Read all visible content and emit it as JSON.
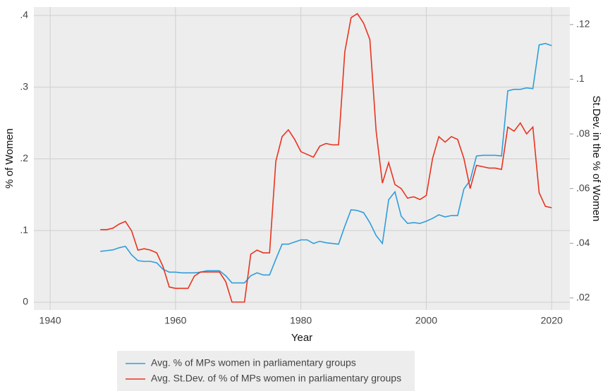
{
  "chart_data": {
    "type": "line",
    "x_label": "Year",
    "y_label": "% of Women",
    "y2_label": "St.Dev. in the % of Women",
    "x": [
      1948,
      1949,
      1950,
      1951,
      1952,
      1953,
      1954,
      1955,
      1956,
      1957,
      1958,
      1959,
      1960,
      1961,
      1962,
      1963,
      1964,
      1965,
      1966,
      1967,
      1968,
      1969,
      1970,
      1971,
      1972,
      1973,
      1974,
      1975,
      1976,
      1977,
      1978,
      1979,
      1980,
      1981,
      1982,
      1983,
      1984,
      1985,
      1986,
      1987,
      1988,
      1989,
      1990,
      1991,
      1992,
      1993,
      1994,
      1995,
      1996,
      1997,
      1998,
      1999,
      2000,
      2001,
      2002,
      2003,
      2004,
      2005,
      2006,
      2007,
      2008,
      2009,
      2010,
      2011,
      2012,
      2013,
      2014,
      2015,
      2016,
      2017,
      2018,
      2019,
      2020
    ],
    "series": [
      {
        "name": "Avg. % of MPs women in parliamentary groups",
        "color": "#2f9ddb",
        "axis": "y",
        "values": [
          0.071,
          0.072,
          0.073,
          0.076,
          0.078,
          0.066,
          0.058,
          0.057,
          0.057,
          0.055,
          0.046,
          0.042,
          0.042,
          0.041,
          0.041,
          0.041,
          0.042,
          0.044,
          0.044,
          0.044,
          0.037,
          0.027,
          0.027,
          0.027,
          0.037,
          0.041,
          0.038,
          0.038,
          0.06,
          0.081,
          0.081,
          0.084,
          0.087,
          0.087,
          0.082,
          0.085,
          0.083,
          0.082,
          0.081,
          0.106,
          0.129,
          0.128,
          0.125,
          0.111,
          0.093,
          0.082,
          0.143,
          0.154,
          0.12,
          0.11,
          0.111,
          0.11,
          0.113,
          0.117,
          0.122,
          0.119,
          0.121,
          0.121,
          0.158,
          0.17,
          0.204,
          0.205,
          0.205,
          0.205,
          0.204,
          0.295,
          0.297,
          0.297,
          0.299,
          0.298,
          0.359,
          0.361,
          0.358
        ]
      },
      {
        "name": "Avg. St.Dev. of % of MPs women in parliamentary groups",
        "color": "#e8341f",
        "axis": "y2",
        "values": [
          0.045,
          0.045,
          0.0455,
          0.047,
          0.048,
          0.0445,
          0.0375,
          0.038,
          0.0375,
          0.0365,
          0.0315,
          0.024,
          0.0235,
          0.0235,
          0.0235,
          0.028,
          0.0295,
          0.0295,
          0.0295,
          0.0295,
          0.026,
          0.0185,
          0.0185,
          0.0185,
          0.036,
          0.0375,
          0.0365,
          0.0365,
          0.07,
          0.079,
          0.0815,
          0.078,
          0.0735,
          0.0725,
          0.0715,
          0.0755,
          0.0765,
          0.076,
          0.076,
          0.11,
          0.1225,
          0.124,
          0.1205,
          0.1145,
          0.081,
          0.062,
          0.0695,
          0.0615,
          0.06,
          0.0565,
          0.057,
          0.056,
          0.0575,
          0.071,
          0.079,
          0.077,
          0.079,
          0.078,
          0.071,
          0.06,
          0.0685,
          0.068,
          0.0675,
          0.0675,
          0.067,
          0.0825,
          0.081,
          0.084,
          0.08,
          0.0825,
          0.0585,
          0.0535,
          0.053
        ]
      }
    ],
    "xlim": [
      1937.4,
      2022.9
    ],
    "xticks": [
      1940,
      1960,
      1980,
      2000,
      2020
    ],
    "ylim": [
      -0.0108,
      0.4118
    ],
    "yticks": [
      0,
      {
        "value": 0.1,
        "label": ".1"
      },
      {
        "value": 0.2,
        "label": ".2"
      },
      {
        "value": 0.3,
        "label": ".3"
      },
      {
        "value": 0.4,
        "label": ".4"
      }
    ],
    "y2lim": [
      0.0156,
      0.1264
    ],
    "y2ticks": [
      {
        "value": 0.02,
        "label": ".02"
      },
      {
        "value": 0.04,
        "label": ".04"
      },
      {
        "value": 0.06,
        "label": ".06"
      },
      {
        "value": 0.08,
        "label": ".08"
      },
      {
        "value": 0.1,
        "label": ".1"
      },
      {
        "value": 0.12,
        "label": ".12"
      }
    ],
    "grid": true,
    "legend": "bottom"
  }
}
